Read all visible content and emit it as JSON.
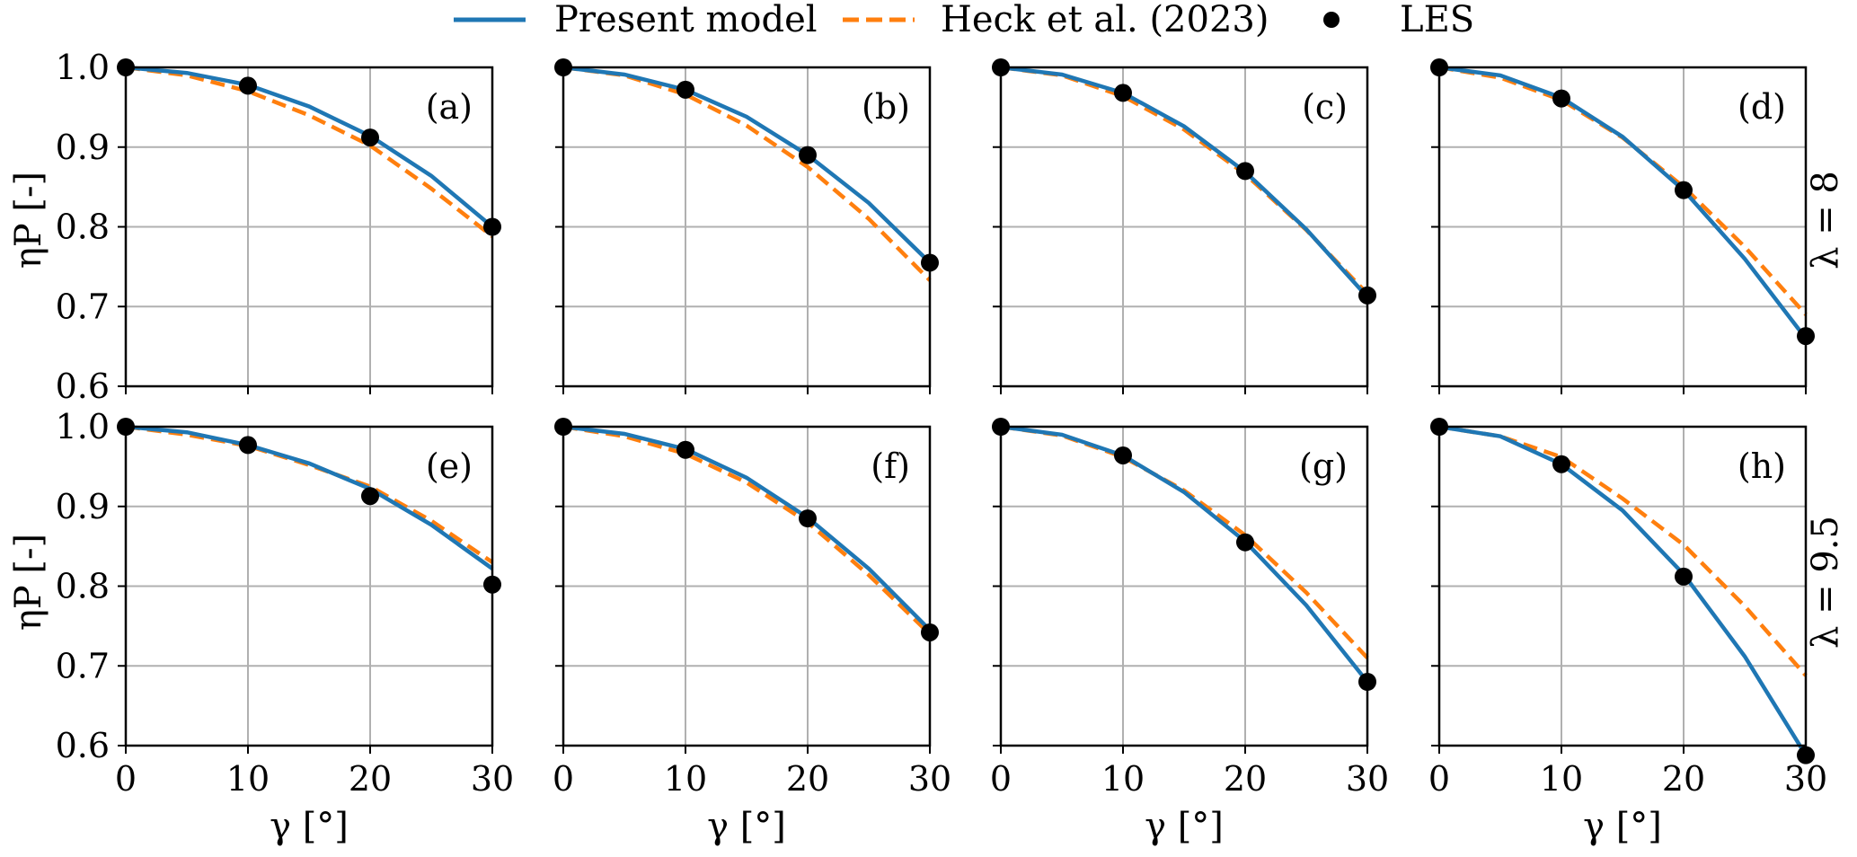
{
  "legend": {
    "present": "Present model",
    "heck": "Heck et al. (2023)",
    "les": "LES"
  },
  "axes": {
    "xlabel": "γ [°]",
    "ylabel": "ηP [-]",
    "row_labels": [
      "λ = 8",
      "λ = 9.5"
    ]
  },
  "colors": {
    "present": "#1f77b4",
    "heck": "#ff7f0e",
    "les": "#000000",
    "grid": "#b0b0b0"
  },
  "chart_data": {
    "type": "line",
    "x_ticks": [
      0,
      10,
      20,
      30
    ],
    "y_ticks": [
      0.6,
      0.7,
      0.8,
      0.9,
      1.0
    ],
    "xlim": [
      0,
      30
    ],
    "ylim": [
      0.6,
      1.0
    ],
    "grid": true,
    "legend_position": "top",
    "panels": [
      {
        "label": "(a)",
        "row": 0,
        "col": 0,
        "present": {
          "x": [
            0,
            5,
            10,
            15,
            20,
            25,
            30
          ],
          "y": [
            1.0,
            0.993,
            0.978,
            0.951,
            0.914,
            0.864,
            0.8
          ]
        },
        "heck": {
          "x": [
            0,
            5,
            10,
            15,
            20,
            25,
            30
          ],
          "y": [
            1.0,
            0.99,
            0.97,
            0.94,
            0.902,
            0.848,
            0.788
          ]
        },
        "les": {
          "x": [
            0,
            10,
            20,
            30
          ],
          "y": [
            1.0,
            0.977,
            0.912,
            0.8
          ]
        }
      },
      {
        "label": "(b)",
        "row": 0,
        "col": 1,
        "present": {
          "x": [
            0,
            5,
            10,
            15,
            20,
            25,
            30
          ],
          "y": [
            1.0,
            0.991,
            0.972,
            0.938,
            0.89,
            0.83,
            0.755
          ]
        },
        "heck": {
          "x": [
            0,
            5,
            10,
            15,
            20,
            25,
            30
          ],
          "y": [
            1.0,
            0.99,
            0.966,
            0.927,
            0.875,
            0.81,
            0.733
          ]
        },
        "les": {
          "x": [
            0,
            10,
            20,
            30
          ],
          "y": [
            1.0,
            0.972,
            0.89,
            0.755
          ]
        }
      },
      {
        "label": "(c)",
        "row": 0,
        "col": 2,
        "present": {
          "x": [
            0,
            5,
            10,
            15,
            20,
            25,
            30
          ],
          "y": [
            1.0,
            0.991,
            0.968,
            0.926,
            0.869,
            0.797,
            0.712
          ]
        },
        "heck": {
          "x": [
            0,
            5,
            10,
            15,
            20,
            25,
            30
          ],
          "y": [
            1.0,
            0.99,
            0.964,
            0.922,
            0.866,
            0.796,
            0.716
          ]
        },
        "les": {
          "x": [
            0,
            10,
            20,
            30
          ],
          "y": [
            1.0,
            0.968,
            0.87,
            0.714
          ]
        }
      },
      {
        "label": "(d)",
        "row": 0,
        "col": 3,
        "present": {
          "x": [
            0,
            5,
            10,
            15,
            20,
            25,
            30
          ],
          "y": [
            1.0,
            0.99,
            0.962,
            0.913,
            0.846,
            0.76,
            0.66
          ]
        },
        "heck": {
          "x": [
            0,
            5,
            10,
            15,
            20,
            25,
            30
          ],
          "y": [
            1.0,
            0.987,
            0.959,
            0.912,
            0.85,
            0.775,
            0.69
          ]
        },
        "les": {
          "x": [
            0,
            10,
            20,
            30
          ],
          "y": [
            1.0,
            0.961,
            0.846,
            0.663
          ]
        }
      },
      {
        "label": "(e)",
        "row": 1,
        "col": 0,
        "present": {
          "x": [
            0,
            5,
            10,
            15,
            20,
            25,
            30
          ],
          "y": [
            1.0,
            0.993,
            0.977,
            0.954,
            0.922,
            0.877,
            0.822
          ]
        },
        "heck": {
          "x": [
            0,
            5,
            10,
            15,
            20,
            25,
            30
          ],
          "y": [
            1.0,
            0.99,
            0.976,
            0.952,
            0.925,
            0.882,
            0.83
          ]
        },
        "les": {
          "x": [
            0,
            10,
            20,
            30
          ],
          "y": [
            1.0,
            0.977,
            0.913,
            0.802
          ]
        }
      },
      {
        "label": "(f)",
        "row": 1,
        "col": 1,
        "present": {
          "x": [
            0,
            5,
            10,
            15,
            20,
            25,
            30
          ],
          "y": [
            1.0,
            0.991,
            0.972,
            0.936,
            0.886,
            0.822,
            0.745
          ]
        },
        "heck": {
          "x": [
            0,
            5,
            10,
            15,
            20,
            25,
            30
          ],
          "y": [
            1.0,
            0.988,
            0.966,
            0.93,
            0.88,
            0.814,
            0.74
          ]
        },
        "les": {
          "x": [
            0,
            10,
            20,
            30
          ],
          "y": [
            1.0,
            0.971,
            0.885,
            0.742
          ]
        }
      },
      {
        "label": "(g)",
        "row": 1,
        "col": 2,
        "present": {
          "x": [
            0,
            5,
            10,
            15,
            20,
            25,
            30
          ],
          "y": [
            1.0,
            0.99,
            0.964,
            0.918,
            0.856,
            0.776,
            0.68
          ]
        },
        "heck": {
          "x": [
            0,
            5,
            10,
            15,
            20,
            25,
            30
          ],
          "y": [
            1.0,
            0.989,
            0.962,
            0.92,
            0.864,
            0.792,
            0.71
          ]
        },
        "les": {
          "x": [
            0,
            10,
            20,
            30
          ],
          "y": [
            1.0,
            0.964,
            0.855,
            0.68
          ]
        }
      },
      {
        "label": "(h)",
        "row": 1,
        "col": 3,
        "present": {
          "x": [
            0,
            5,
            10,
            15,
            20,
            25,
            30
          ],
          "y": [
            1.0,
            0.988,
            0.953,
            0.895,
            0.815,
            0.712,
            0.588
          ]
        },
        "heck": {
          "x": [
            0,
            5,
            10,
            15,
            20,
            25,
            30
          ],
          "y": [
            1.0,
            0.988,
            0.962,
            0.91,
            0.852,
            0.775,
            0.688
          ]
        },
        "les": {
          "x": [
            0,
            10,
            20,
            30
          ],
          "y": [
            1.0,
            0.953,
            0.812,
            0.588
          ]
        }
      }
    ]
  }
}
